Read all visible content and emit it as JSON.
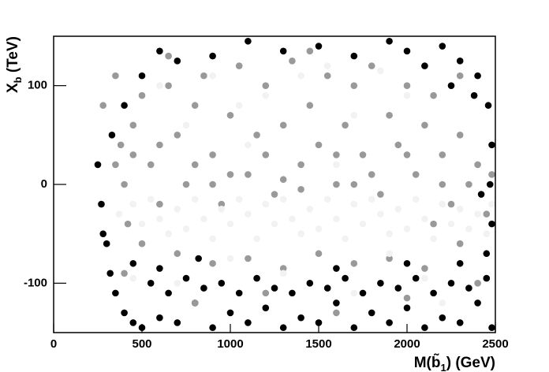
{
  "chart_data": {
    "type": "scatter",
    "xlabel": {
      "prefix": "M(",
      "symbol": "b̃",
      "sub": "1",
      "suffix": ") (GeV)"
    },
    "ylabel": {
      "symbol": "X",
      "sub": "b",
      "suffix": " (TeV)"
    },
    "xlim": [
      0,
      2500
    ],
    "xticks": [
      0,
      500,
      1000,
      1500,
      2000,
      2500
    ],
    "ylim": [
      -150,
      150
    ],
    "yticks": [
      -100,
      0,
      100
    ],
    "series": [
      {
        "color": "#000000",
        "x": [
          250,
          270,
          300,
          320,
          350,
          400,
          450,
          500,
          600,
          700,
          800,
          900,
          1000,
          1100,
          1200,
          1300,
          1400,
          1500,
          1600,
          1700,
          1800,
          1900,
          2000,
          2100,
          2200,
          2300,
          2400,
          2480,
          550,
          650,
          750,
          850,
          950,
          1050,
          1150,
          1250,
          1350,
          1450,
          1550,
          1650,
          1750,
          1850,
          1950,
          2050,
          2150,
          2250,
          2350,
          2450,
          450,
          600,
          2300,
          2450,
          2480,
          2470,
          2480,
          2460,
          2400,
          2300,
          2200,
          2100,
          2000,
          1900,
          1700,
          1500,
          1300,
          1100,
          900,
          700,
          600,
          500,
          400,
          330,
          280,
          2420,
          2380,
          2250,
          820,
          1600,
          2000
        ],
        "y": [
          20,
          -20,
          -60,
          -90,
          -110,
          -130,
          -140,
          -145,
          -135,
          -140,
          -120,
          -145,
          -130,
          -140,
          -125,
          -145,
          -135,
          -140,
          -120,
          -145,
          -130,
          -140,
          -125,
          -145,
          -135,
          -140,
          -120,
          -145,
          -100,
          -110,
          -95,
          -105,
          -100,
          -110,
          -95,
          -105,
          -110,
          -100,
          -105,
          -95,
          -110,
          -100,
          -105,
          -95,
          -110,
          -100,
          -105,
          -95,
          -80,
          -85,
          -80,
          -70,
          -40,
          0,
          40,
          80,
          110,
          125,
          140,
          120,
          135,
          145,
          130,
          140,
          135,
          145,
          130,
          125,
          135,
          110,
          80,
          50,
          -50,
          -10,
          90,
          100,
          -75,
          -85,
          -80
        ]
      },
      {
        "color": "#999999",
        "x": [
          280,
          350,
          380,
          400,
          420,
          450,
          500,
          550,
          600,
          650,
          700,
          750,
          800,
          850,
          900,
          950,
          1000,
          1050,
          1100,
          1150,
          1200,
          1250,
          1300,
          1350,
          1400,
          1450,
          1500,
          1550,
          1600,
          1650,
          1700,
          1750,
          1800,
          1850,
          1900,
          1950,
          2000,
          2050,
          2100,
          2150,
          2200,
          2250,
          2300,
          2350,
          2400,
          2450,
          2480,
          500,
          700,
          900,
          1100,
          1300,
          1500,
          1700,
          1900,
          2100,
          2300,
          400,
          800,
          1200,
          1600,
          2000,
          2400,
          600,
          800,
          1000,
          1200,
          1400,
          1600,
          1800,
          2000,
          2200,
          350,
          450,
          1700,
          1300,
          900,
          2300,
          650,
          1450,
          2150
        ],
        "y": [
          80,
          110,
          40,
          0,
          -40,
          60,
          90,
          20,
          -20,
          100,
          50,
          0,
          80,
          110,
          30,
          -20,
          70,
          120,
          10,
          50,
          100,
          -10,
          60,
          125,
          20,
          80,
          40,
          110,
          0,
          60,
          100,
          30,
          120,
          -10,
          70,
          40,
          100,
          10,
          60,
          90,
          30,
          -20,
          50,
          0,
          20,
          -30,
          10,
          -60,
          -70,
          -80,
          -75,
          -85,
          -70,
          -80,
          -75,
          -85,
          -60,
          -90,
          -120,
          -110,
          -130,
          -115,
          -100,
          40,
          20,
          10,
          30,
          -5,
          30,
          10,
          30,
          0,
          20,
          30,
          0,
          5,
          0,
          110,
          130,
          135,
          -40
        ]
      },
      {
        "color": "#f2f2f2",
        "x": [
          370,
          450,
          500,
          550,
          600,
          650,
          700,
          750,
          800,
          850,
          900,
          950,
          1000,
          1050,
          1100,
          1150,
          1200,
          1250,
          1300,
          1350,
          1400,
          1450,
          1500,
          1550,
          1600,
          1650,
          1700,
          1750,
          1800,
          1850,
          1900,
          1950,
          2000,
          2050,
          2100,
          2150,
          2200,
          2250,
          2300,
          2350,
          2400,
          2450,
          2480,
          600,
          750,
          900,
          1050,
          1200,
          1400,
          1550,
          1700,
          1850,
          2000,
          1600,
          1100,
          700,
          1300,
          1700,
          2100,
          1900,
          1000,
          450,
          2200
        ],
        "y": [
          -30,
          -20,
          -40,
          -15,
          -35,
          -50,
          -25,
          -45,
          -15,
          -35,
          -55,
          -25,
          -40,
          -15,
          -30,
          -55,
          -20,
          -40,
          -15,
          -35,
          -50,
          -25,
          -45,
          -15,
          -35,
          -55,
          -20,
          -40,
          -15,
          -30,
          -50,
          -25,
          -45,
          -15,
          -35,
          -55,
          -20,
          -40,
          -25,
          -45,
          -30,
          -50,
          -20,
          100,
          60,
          110,
          80,
          90,
          110,
          120,
          70,
          115,
          90,
          20,
          40,
          -100,
          -90,
          -110,
          -95,
          -70,
          -75,
          -95,
          -120
        ]
      }
    ]
  }
}
